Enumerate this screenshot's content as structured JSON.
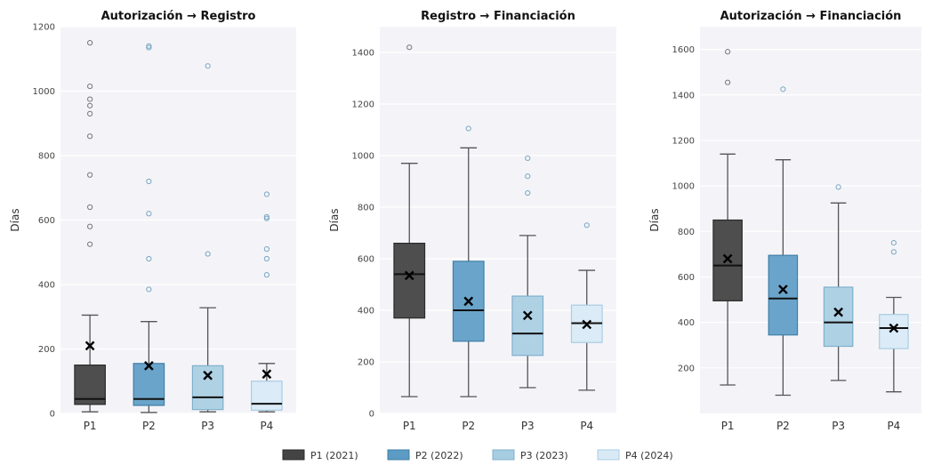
{
  "legend": {
    "items": [
      {
        "label": "P1 (2021)",
        "color": "#444444"
      },
      {
        "label": "P2 (2022)",
        "color": "#5b9bc4"
      },
      {
        "label": "P3 (2023)",
        "color": "#a7cde1"
      },
      {
        "label": "P4 (2024)",
        "color": "#d8eaf6"
      }
    ]
  },
  "chart_data": [
    {
      "type": "box",
      "title": "Autorización → Registro",
      "ylabel": "Días",
      "ylim": [
        0,
        1200
      ],
      "yticks": [
        0,
        200,
        400,
        600,
        800,
        1000,
        1200
      ],
      "categories": [
        "P1",
        "P2",
        "P3",
        "P4"
      ],
      "boxes": [
        {
          "whisker_low": 5,
          "q1": 28,
          "median": 45,
          "q3": 150,
          "whisker_high": 305,
          "mean": 210,
          "outliers": [
            1150,
            1015,
            975,
            955,
            930,
            860,
            740,
            640,
            580,
            525
          ]
        },
        {
          "whisker_low": 3,
          "q1": 25,
          "median": 45,
          "q3": 155,
          "whisker_high": 285,
          "mean": 148,
          "outliers": [
            1140,
            1135,
            720,
            620,
            480,
            385
          ]
        },
        {
          "whisker_low": 5,
          "q1": 12,
          "median": 50,
          "q3": 148,
          "whisker_high": 328,
          "mean": 118,
          "outliers": [
            1078,
            495
          ]
        },
        {
          "whisker_low": 5,
          "q1": 10,
          "median": 30,
          "q3": 100,
          "whisker_high": 155,
          "mean": 122,
          "outliers": [
            680,
            610,
            605,
            510,
            480,
            430
          ]
        }
      ]
    },
    {
      "type": "box",
      "title": "Registro → Financiación",
      "ylabel": "Días",
      "ylim": [
        0,
        1500
      ],
      "yticks": [
        0,
        200,
        400,
        600,
        800,
        1000,
        1200,
        1400
      ],
      "categories": [
        "P1",
        "P2",
        "P3",
        "P4"
      ],
      "boxes": [
        {
          "whisker_low": 65,
          "q1": 370,
          "median": 540,
          "q3": 660,
          "whisker_high": 970,
          "mean": 535,
          "outliers": [
            1420
          ]
        },
        {
          "whisker_low": 65,
          "q1": 280,
          "median": 400,
          "q3": 590,
          "whisker_high": 1030,
          "mean": 435,
          "outliers": [
            1105
          ]
        },
        {
          "whisker_low": 100,
          "q1": 225,
          "median": 310,
          "q3": 455,
          "whisker_high": 690,
          "mean": 380,
          "outliers": [
            990,
            920,
            855
          ]
        },
        {
          "whisker_low": 90,
          "q1": 275,
          "median": 350,
          "q3": 420,
          "whisker_high": 555,
          "mean": 345,
          "outliers": [
            730
          ]
        }
      ]
    },
    {
      "type": "box",
      "title": "Autorización → Financiación",
      "ylabel": "Días",
      "ylim": [
        0,
        1700
      ],
      "yticks": [
        200,
        400,
        600,
        800,
        1000,
        1200,
        1400,
        1600
      ],
      "categories": [
        "P1",
        "P2",
        "P3",
        "P4"
      ],
      "boxes": [
        {
          "whisker_low": 125,
          "q1": 495,
          "median": 650,
          "q3": 850,
          "whisker_high": 1140,
          "mean": 680,
          "outliers": [
            1590,
            1455
          ]
        },
        {
          "whisker_low": 80,
          "q1": 345,
          "median": 505,
          "q3": 695,
          "whisker_high": 1115,
          "mean": 545,
          "outliers": [
            1425
          ]
        },
        {
          "whisker_low": 145,
          "q1": 295,
          "median": 400,
          "q3": 555,
          "whisker_high": 925,
          "mean": 445,
          "outliers": [
            995
          ]
        },
        {
          "whisker_low": 95,
          "q1": 285,
          "median": 375,
          "q3": 435,
          "whisker_high": 510,
          "mean": 375,
          "outliers": [
            750,
            710
          ]
        }
      ]
    }
  ]
}
